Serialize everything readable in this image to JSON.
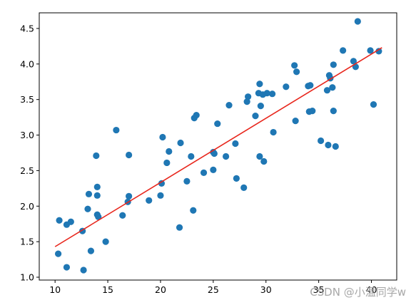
{
  "chart_data": {
    "type": "scatter",
    "title": "",
    "xlabel": "",
    "ylabel": "",
    "xlim": [
      8.5,
      42.4
    ],
    "ylim": [
      0.96,
      4.72
    ],
    "x_ticks": [
      10,
      15,
      20,
      25,
      30,
      35,
      40
    ],
    "y_ticks": [
      1.0,
      1.5,
      2.0,
      2.5,
      3.0,
      3.5,
      4.0,
      4.5
    ],
    "grid": false,
    "legend": "none",
    "point_color": "#1f77b4",
    "line_color": "#e8261c",
    "series": [
      {
        "kind": "scatter",
        "points": [
          [
            10.3,
            1.33
          ],
          [
            10.4,
            1.8
          ],
          [
            11.1,
            1.14
          ],
          [
            11.1,
            1.74
          ],
          [
            11.5,
            1.78
          ],
          [
            12.6,
            1.65
          ],
          [
            12.7,
            1.1
          ],
          [
            13.1,
            1.96
          ],
          [
            13.2,
            2.17
          ],
          [
            13.4,
            1.37
          ],
          [
            13.9,
            2.71
          ],
          [
            14.0,
            2.27
          ],
          [
            14.0,
            2.15
          ],
          [
            14.0,
            1.88
          ],
          [
            14.1,
            1.85
          ],
          [
            14.8,
            1.5
          ],
          [
            15.8,
            3.07
          ],
          [
            16.4,
            1.87
          ],
          [
            16.9,
            2.06
          ],
          [
            17.0,
            2.72
          ],
          [
            17.0,
            2.14
          ],
          [
            18.9,
            2.08
          ],
          [
            20.0,
            2.15
          ],
          [
            20.1,
            2.32
          ],
          [
            20.2,
            2.97
          ],
          [
            20.6,
            2.61
          ],
          [
            20.8,
            2.77
          ],
          [
            21.8,
            1.7
          ],
          [
            21.9,
            2.89
          ],
          [
            22.5,
            2.35
          ],
          [
            22.9,
            2.7
          ],
          [
            23.1,
            1.94
          ],
          [
            23.2,
            3.24
          ],
          [
            23.4,
            3.28
          ],
          [
            24.1,
            2.47
          ],
          [
            25.0,
            2.76
          ],
          [
            25.1,
            2.74
          ],
          [
            25.0,
            2.51
          ],
          [
            25.4,
            3.16
          ],
          [
            26.2,
            2.7
          ],
          [
            26.5,
            3.42
          ],
          [
            27.1,
            2.88
          ],
          [
            27.2,
            2.39
          ],
          [
            27.9,
            2.26
          ],
          [
            28.2,
            3.47
          ],
          [
            28.3,
            3.54
          ],
          [
            29.0,
            3.27
          ],
          [
            29.3,
            3.59
          ],
          [
            29.4,
            3.72
          ],
          [
            29.4,
            2.7
          ],
          [
            29.5,
            3.41
          ],
          [
            29.7,
            3.57
          ],
          [
            29.8,
            2.63
          ],
          [
            30.1,
            3.59
          ],
          [
            30.6,
            3.58
          ],
          [
            30.7,
            3.04
          ],
          [
            31.9,
            3.68
          ],
          [
            32.7,
            3.98
          ],
          [
            32.9,
            3.89
          ],
          [
            32.8,
            3.2
          ],
          [
            34.0,
            3.69
          ],
          [
            34.1,
            3.33
          ],
          [
            34.2,
            3.7
          ],
          [
            34.4,
            3.34
          ],
          [
            35.2,
            2.92
          ],
          [
            35.8,
            3.63
          ],
          [
            35.9,
            2.86
          ],
          [
            36.0,
            3.84
          ],
          [
            36.1,
            3.8
          ],
          [
            36.3,
            3.67
          ],
          [
            36.4,
            3.99
          ],
          [
            36.4,
            3.34
          ],
          [
            36.6,
            2.84
          ],
          [
            37.3,
            4.19
          ],
          [
            38.3,
            4.04
          ],
          [
            38.5,
            3.96
          ],
          [
            38.7,
            4.6
          ],
          [
            39.9,
            4.19
          ],
          [
            40.2,
            3.43
          ],
          [
            40.7,
            4.18
          ]
        ]
      },
      {
        "kind": "line",
        "x": [
          10.0,
          41.0
        ],
        "y": [
          1.43,
          4.23
        ]
      }
    ]
  },
  "watermark": "CSDN @小温同学w"
}
